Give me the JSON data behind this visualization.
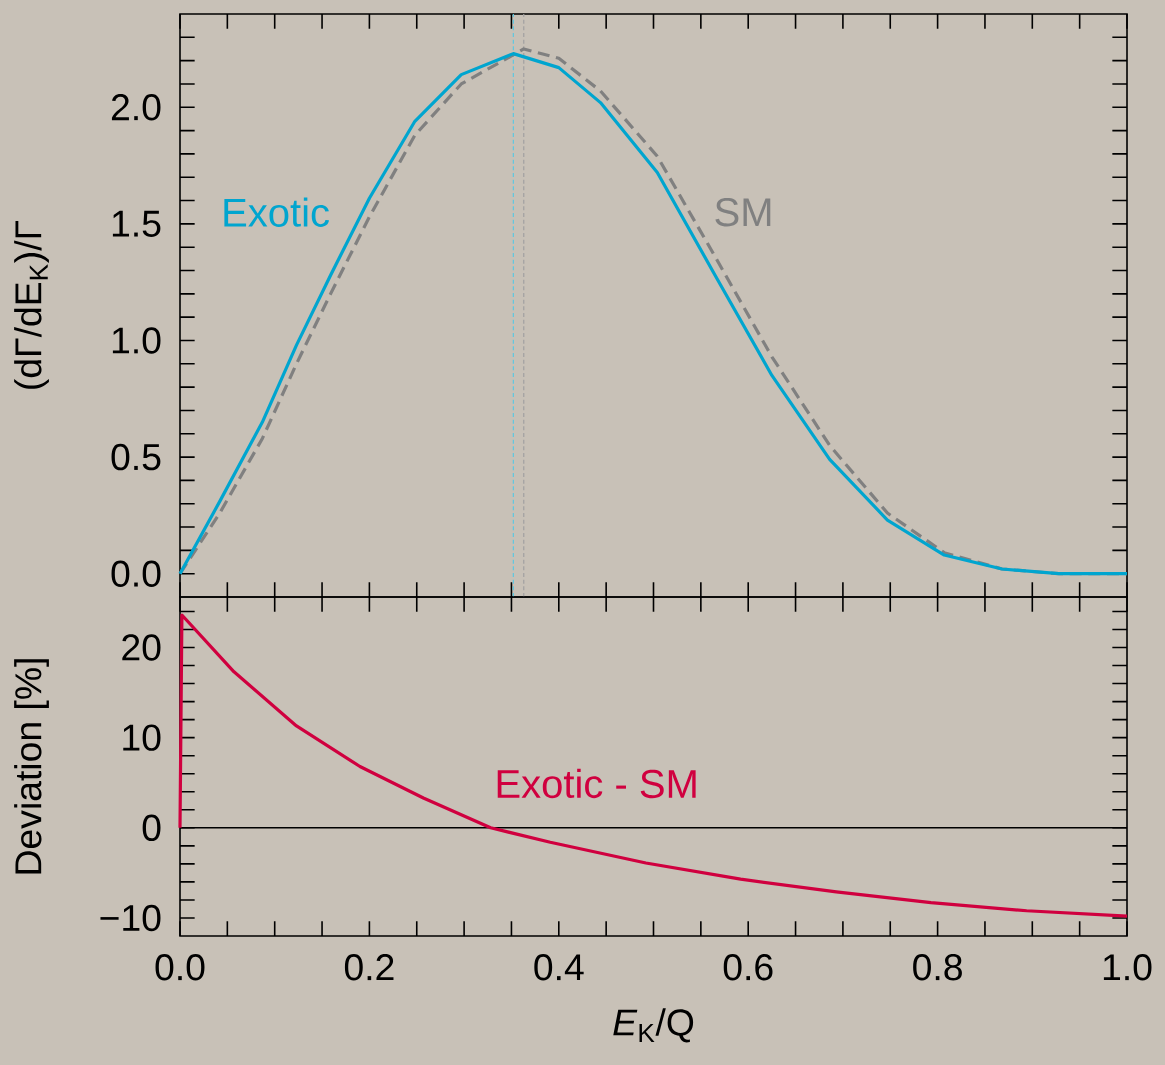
{
  "chart_data": [
    {
      "type": "line",
      "ylabel": "(dΓ/dE$_{K}$)/Γ",
      "xlim": [
        0,
        1
      ],
      "ylim": [
        -0.1,
        2.4
      ],
      "xticks": [
        0,
        {
          "value": 0.05,
          "label": null
        },
        {
          "value": 0.1,
          "label": null
        },
        {
          "value": 0.15,
          "label": null
        },
        0.2,
        {
          "value": 0.25,
          "label": null
        },
        {
          "value": 0.3,
          "label": null
        },
        {
          "value": 0.35,
          "label": null
        },
        0.4,
        {
          "value": 0.45,
          "label": null
        },
        {
          "value": 0.5,
          "label": null
        },
        {
          "value": 0.55,
          "label": null
        },
        0.6,
        {
          "value": 0.65,
          "label": null
        },
        {
          "value": 0.7,
          "label": null
        },
        {
          "value": 0.75,
          "label": null
        },
        0.8,
        {
          "value": 0.85,
          "label": null
        },
        {
          "value": 0.9,
          "label": null
        },
        {
          "value": 0.95,
          "label": null
        },
        1.0
      ],
      "yticks": [
        {
          "value": 0,
          "label": "0.0"
        },
        {
          "value": 0.1,
          "label": null
        },
        {
          "value": 0.2,
          "label": null
        },
        {
          "value": 0.3,
          "label": null
        },
        {
          "value": 0.4,
          "label": null
        },
        {
          "value": 0.5,
          "label": "0.5"
        },
        {
          "value": 0.6,
          "label": null
        },
        {
          "value": 0.7,
          "label": null
        },
        {
          "value": 0.8,
          "label": null
        },
        {
          "value": 0.9,
          "label": null
        },
        {
          "value": 1,
          "label": "1.0"
        },
        {
          "value": 1.1,
          "label": null
        },
        {
          "value": 1.2,
          "label": null
        },
        {
          "value": 1.3,
          "label": null
        },
        {
          "value": 1.4,
          "label": null
        },
        {
          "value": 1.5,
          "label": "1.5"
        },
        {
          "value": 1.6,
          "label": null
        },
        {
          "value": 1.7,
          "label": null
        },
        {
          "value": 1.8,
          "label": null
        },
        {
          "value": 1.9,
          "label": null
        },
        {
          "value": 2,
          "label": "2.0"
        },
        {
          "value": 2.1,
          "label": null
        },
        {
          "value": 2.2,
          "label": null
        },
        {
          "value": 2.3,
          "label": null
        }
      ],
      "tick_labels": "y",
      "series": [
        {
          "name": "Exotic",
          "color": "#00a5cf",
          "line_style": "solid",
          "x": [
            0,
            0.042,
            0.087,
            0.123,
            0.159,
            0.2,
            0.248,
            0.297,
            0.352,
            0.4,
            0.444,
            0.504,
            0.565,
            0.625,
            0.686,
            0.747,
            0.807,
            0.868,
            0.928,
            1.0
          ],
          "values": [
            0,
            0.31,
            0.65,
            0.98,
            1.28,
            1.61,
            1.94,
            2.14,
            2.23,
            2.17,
            2.02,
            1.72,
            1.28,
            0.85,
            0.49,
            0.23,
            0.08,
            0.02,
            0,
            0
          ]
        },
        {
          "name": "SM",
          "color": "#808080",
          "line_style": "dashed",
          "x": [
            0,
            0.042,
            0.087,
            0.123,
            0.159,
            0.2,
            0.248,
            0.297,
            0.363,
            0.4,
            0.444,
            0.504,
            0.565,
            0.625,
            0.686,
            0.747,
            0.807,
            0.868,
            0.928,
            1.0
          ],
          "values": [
            0,
            0.26,
            0.58,
            0.9,
            1.2,
            1.53,
            1.88,
            2.1,
            2.25,
            2.21,
            2.07,
            1.79,
            1.36,
            0.93,
            0.55,
            0.26,
            0.09,
            0.02,
            0,
            0
          ]
        }
      ],
      "ref_lines": [
        {
          "axis": "x",
          "value": 0.352,
          "color": "#5fc8e0",
          "line_style": "dashed"
        },
        {
          "axis": "x",
          "value": 0.363,
          "color": "#a0a0a0",
          "line_style": "dashed"
        }
      ]
    },
    {
      "type": "line",
      "xlabel": "*E*$_{K}$/Q",
      "ylabel": "Deviation [%]",
      "xlim": [
        0,
        1
      ],
      "ylim": [
        -12,
        25.6
      ],
      "xticks": [
        {
          "value": 0,
          "label": "0.0"
        },
        {
          "value": 0.05,
          "label": null
        },
        {
          "value": 0.1,
          "label": null
        },
        {
          "value": 0.15,
          "label": null
        },
        {
          "value": 0.2,
          "label": "0.2"
        },
        {
          "value": 0.25,
          "label": null
        },
        {
          "value": 0.3,
          "label": null
        },
        {
          "value": 0.35,
          "label": null
        },
        {
          "value": 0.4,
          "label": "0.4"
        },
        {
          "value": 0.45,
          "label": null
        },
        {
          "value": 0.5,
          "label": null
        },
        {
          "value": 0.55,
          "label": null
        },
        {
          "value": 0.6,
          "label": "0.6"
        },
        {
          "value": 0.65,
          "label": null
        },
        {
          "value": 0.7,
          "label": null
        },
        {
          "value": 0.75,
          "label": null
        },
        {
          "value": 0.8,
          "label": "0.8"
        },
        {
          "value": 0.85,
          "label": null
        },
        {
          "value": 0.9,
          "label": null
        },
        {
          "value": 0.95,
          "label": null
        },
        {
          "value": 1,
          "label": "1.0"
        }
      ],
      "yticks": [
        {
          "value": -10,
          "label": "−10"
        },
        {
          "value": -8,
          "label": null
        },
        {
          "value": -6,
          "label": null
        },
        {
          "value": -4,
          "label": null
        },
        {
          "value": -2,
          "label": null
        },
        0,
        {
          "value": 2,
          "label": null
        },
        {
          "value": 4,
          "label": null
        },
        {
          "value": 6,
          "label": null
        },
        {
          "value": 8,
          "label": null
        },
        10,
        {
          "value": 12,
          "label": null
        },
        {
          "value": 14,
          "label": null
        },
        {
          "value": 16,
          "label": null
        },
        {
          "value": 18,
          "label": null
        },
        20,
        {
          "value": 22,
          "label": null
        },
        {
          "value": 24,
          "label": null
        }
      ],
      "series": [
        {
          "name": "Exotic - SM",
          "color": "#d0003f",
          "line_style": "solid",
          "x": [
            0,
            0.002,
            0.057,
            0.123,
            0.19,
            0.257,
            0.328,
            0.391,
            0.492,
            0.592,
            0.693,
            0.793,
            0.894,
            1.0
          ],
          "values": [
            0,
            23.6,
            17.3,
            11.3,
            6.8,
            3.3,
            0,
            -1.6,
            -3.9,
            -5.7,
            -7.1,
            -8.3,
            -9.2,
            -9.8
          ]
        }
      ],
      "ref_lines": [
        {
          "axis": "y",
          "value": 0,
          "color": "#000000",
          "line_style": "solid"
        }
      ]
    }
  ]
}
